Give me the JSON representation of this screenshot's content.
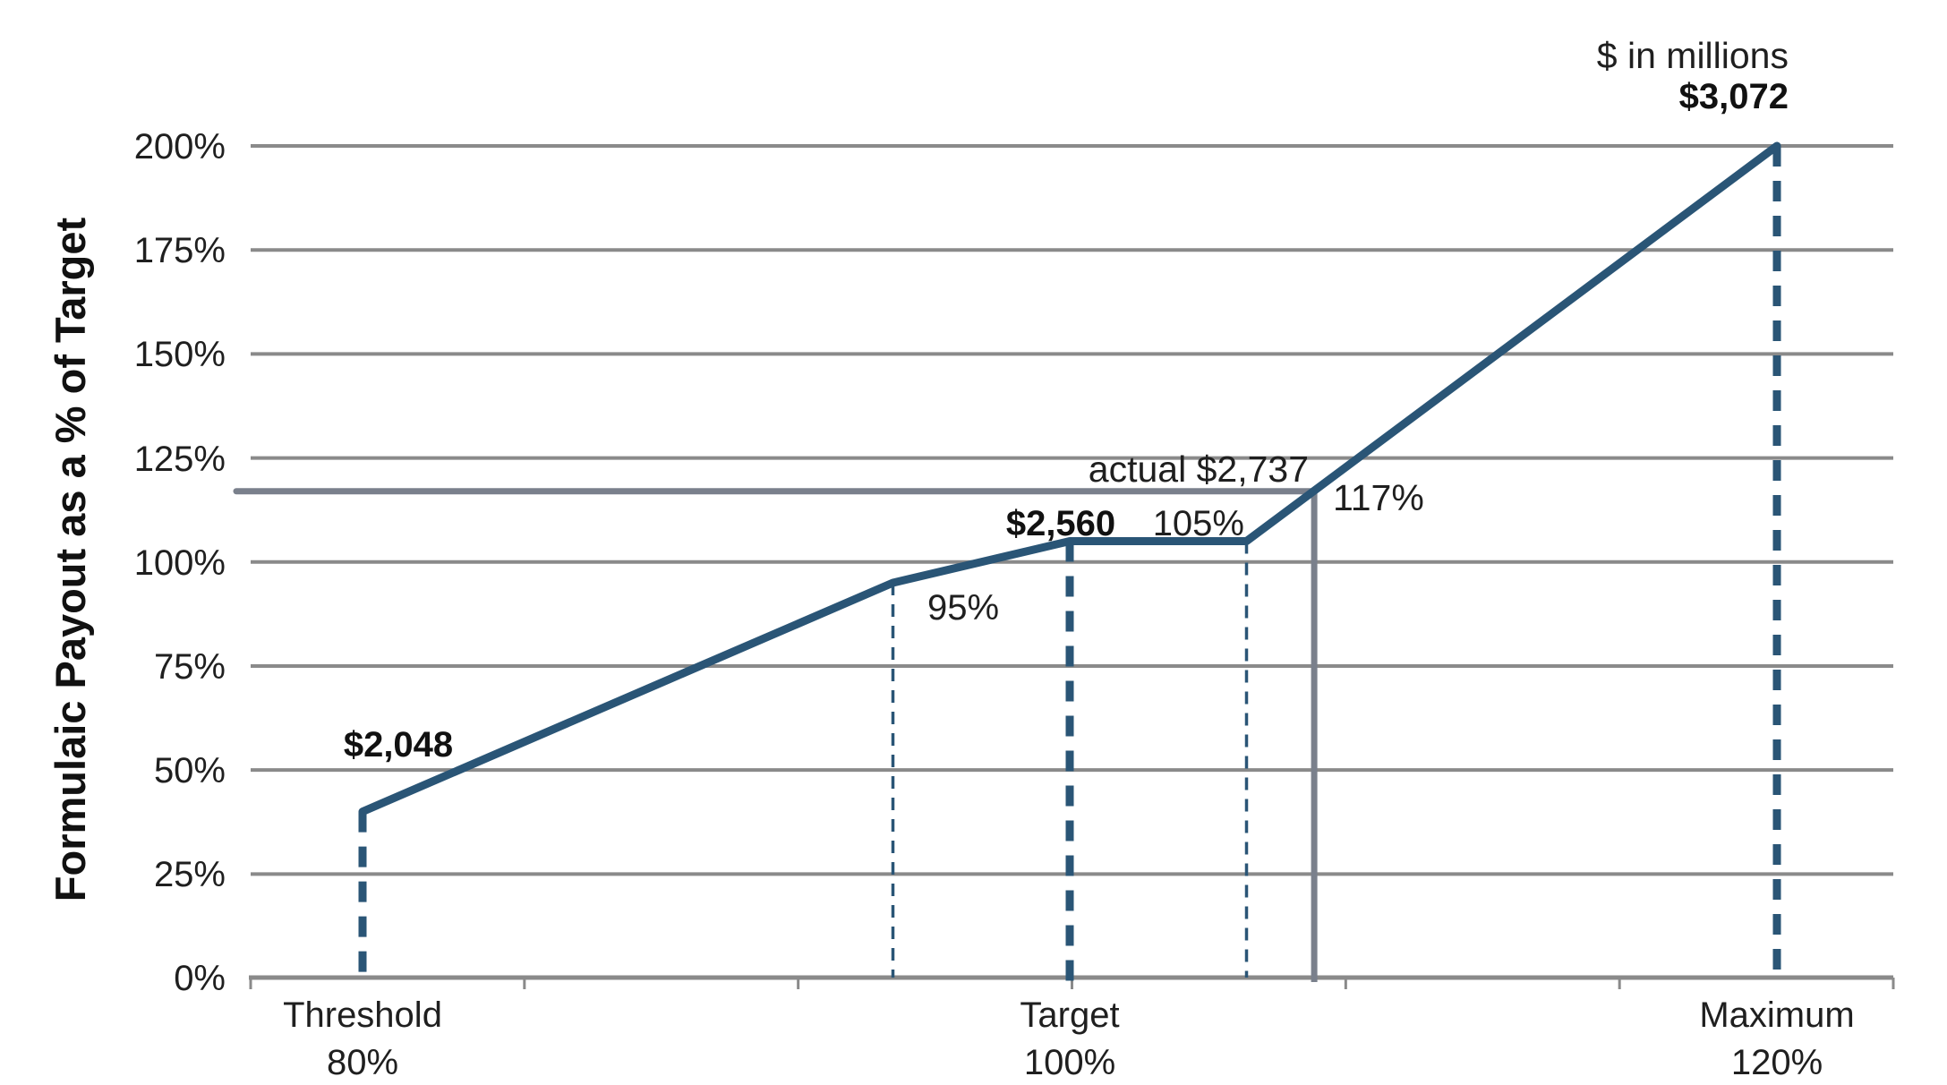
{
  "chart_data": {
    "type": "line",
    "title": "",
    "units_note": "$ in millions",
    "ylabel": "Formulaic Payout as a % of Target",
    "xlabel": "",
    "ylim": [
      0,
      200
    ],
    "grid": true,
    "legend": false,
    "y_ticks": [
      {
        "value": 0,
        "label": "0%"
      },
      {
        "value": 25,
        "label": "25%"
      },
      {
        "value": 50,
        "label": "50%"
      },
      {
        "value": 75,
        "label": "75%"
      },
      {
        "value": 100,
        "label": "100%"
      },
      {
        "value": 125,
        "label": "125%"
      },
      {
        "value": 150,
        "label": "150%"
      },
      {
        "value": 175,
        "label": "175%"
      },
      {
        "value": 200,
        "label": "200%"
      }
    ],
    "x_categories": [
      {
        "name": "Threshold",
        "pct_label": "80%",
        "performance_pct": 80,
        "dollars_label": "$2,048",
        "dollars": 2048
      },
      {
        "name": "Target",
        "pct_label": "100%",
        "performance_pct": 100,
        "dollars_label": "$2,560",
        "dollars": 2560
      },
      {
        "name": "Maximum",
        "pct_label": "120%",
        "performance_pct": 120,
        "dollars_label": "$3,072",
        "dollars": 3072
      }
    ],
    "payout_curve": [
      {
        "performance_pct": 80,
        "payout_pct": 40
      },
      {
        "performance_pct": 95,
        "payout_pct": 95
      },
      {
        "performance_pct": 100,
        "payout_pct": 105
      },
      {
        "performance_pct": 105,
        "payout_pct": 105
      },
      {
        "performance_pct": 120,
        "payout_pct": 200
      }
    ],
    "inflection_labels": [
      {
        "label": "95%",
        "performance_pct": 95
      },
      {
        "label": "105%",
        "performance_pct": 105
      }
    ],
    "actual": {
      "label": "actual $2,737",
      "dollars": 2737,
      "payout_label": "117%",
      "payout_pct": 117
    },
    "colors": {
      "line": "#2A5576",
      "gridline": "#8A8A8A",
      "axis": "#8A8A8A",
      "actual_line": "#7A808C",
      "actual_text": "#85898F",
      "text": "#1F1F1F"
    }
  }
}
